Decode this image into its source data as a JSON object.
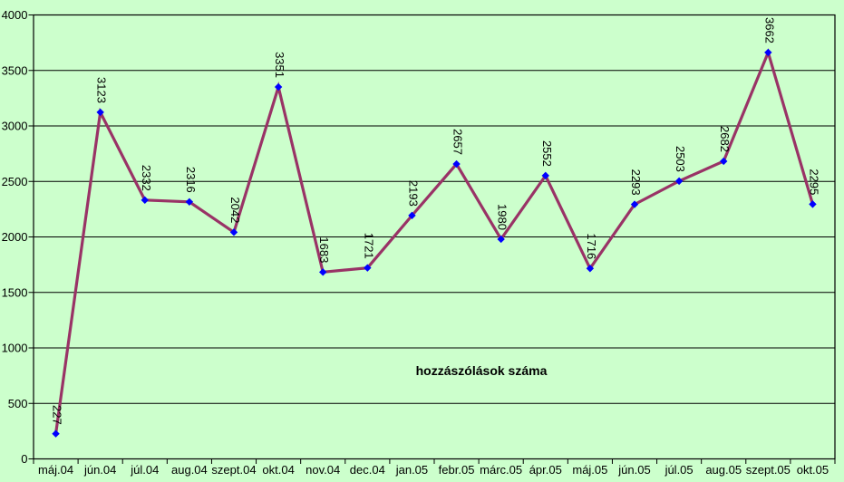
{
  "chart": {
    "background_color": "#CCFFCC",
    "line_color": "#993366",
    "marker_color": "#0000FF",
    "axis_color": "#000000",
    "gridline_color": "#000000",
    "text_color": "#000000",
    "inner_title": "hozzászólások száma"
  },
  "chart_data": {
    "type": "line",
    "title": "hozzászólások száma",
    "categories": [
      "máj.04",
      "jún.04",
      "júl.04",
      "aug.04",
      "szept.04",
      "okt.04",
      "nov.04",
      "dec.04",
      "jan.05",
      "febr.05",
      "márc.05",
      "ápr.05",
      "máj.05",
      "jún.05",
      "júl.05",
      "aug.05",
      "szept.05",
      "okt.05"
    ],
    "values": [
      227,
      3123,
      2332,
      2316,
      2042,
      3351,
      1683,
      1721,
      2193,
      2657,
      1980,
      2552,
      1716,
      2293,
      2503,
      2682,
      3662,
      2295
    ],
    "xlabel": "",
    "ylabel": "",
    "ylim": [
      0,
      4000
    ],
    "ytick_step": 500,
    "ytick_labels": [
      "0",
      "500",
      "1000",
      "1500",
      "2000",
      "2500",
      "3000",
      "3500",
      "4000"
    ],
    "grid": true,
    "legend": false,
    "marker": "diamond",
    "data_labels": true,
    "data_label_rotation_deg": 90
  }
}
